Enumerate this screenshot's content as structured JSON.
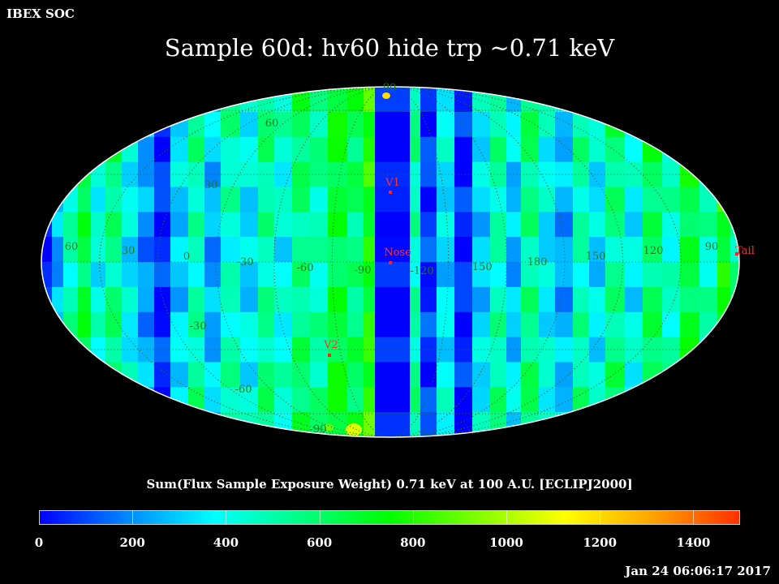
{
  "header": {
    "corner_label": "IBEX SOC",
    "title": "Sample 60d: hv60 hide trp ~0.71 keV"
  },
  "map": {
    "projection": "Mollweide",
    "frame": "ECLIPJ2000",
    "colormap": [
      "#0000ff",
      "#0088ff",
      "#00ffff",
      "#00ff80",
      "#00ff00",
      "#80ff00",
      "#ffff00",
      "#ffa500",
      "#ff3000"
    ],
    "latitude_labels": [
      "90",
      "60",
      "30",
      "-30",
      "-60",
      "-90"
    ],
    "longitude_labels": [
      "60",
      "30",
      "0",
      "-30",
      "-60",
      "-90",
      "-120",
      "-150",
      "180",
      "150",
      "120",
      "90"
    ],
    "markers": [
      {
        "label": "V1",
        "lon": 255,
        "lat": 34
      },
      {
        "label": "Nose",
        "lon": 255,
        "lat": 5
      },
      {
        "label": "V2",
        "lon": 289,
        "lat": -32
      },
      {
        "label": "Tail",
        "lon": 75,
        "lat": -5
      }
    ]
  },
  "colorbar": {
    "title": "Sum(Flux Sample Exposure Weight)  0.71 keV at 100 A.U. [ECLIPJ2000]",
    "min": 0,
    "max": 1500,
    "ticks": [
      "0",
      "200",
      "400",
      "600",
      "800",
      "1000",
      "1200",
      "1400"
    ]
  },
  "footer": {
    "timestamp": "Jan 24 06:06:17 2017"
  }
}
